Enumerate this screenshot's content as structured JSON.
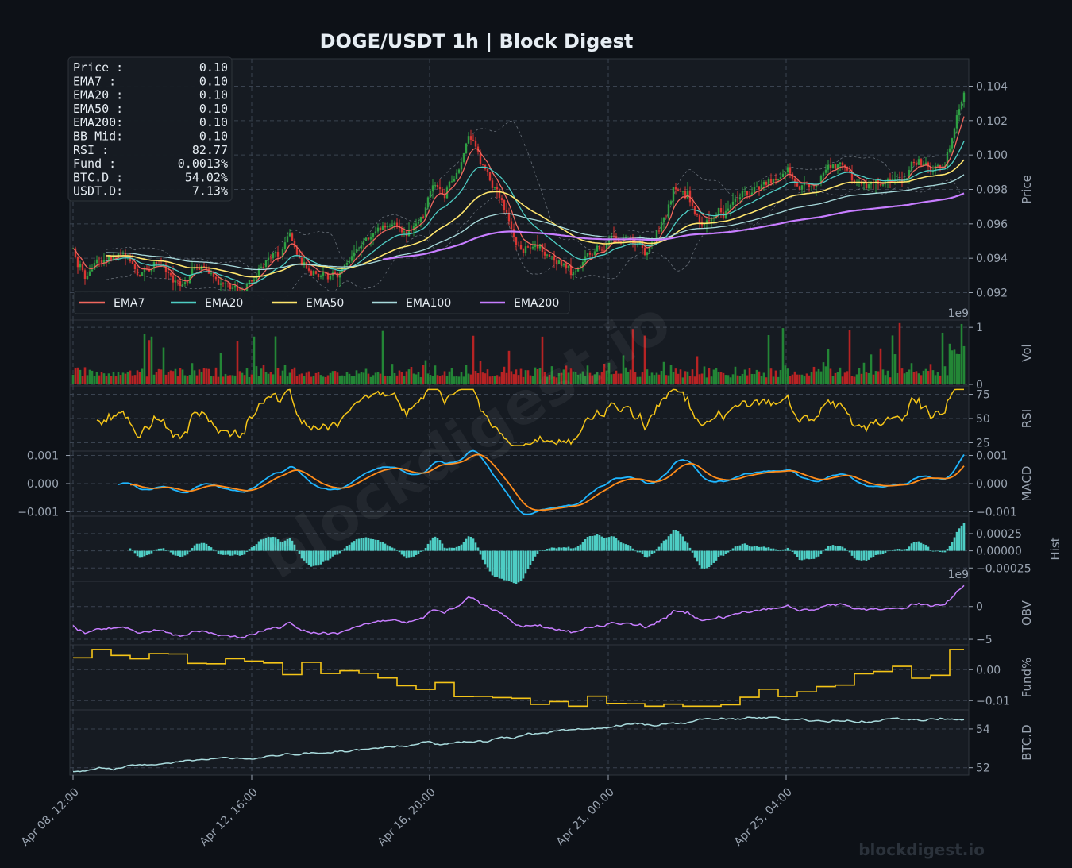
{
  "chart_data": {
    "title": "DOGE/USDT  1h  |  Block Digest",
    "type": "line",
    "watermark_diagonal": "blockdigest.io",
    "watermark_corner": "blockdigest.io",
    "x_ticks": [
      "Apr 08, 12:00",
      "Apr 12, 16:00",
      "Apr 16, 20:00",
      "Apr 21, 00:00",
      "Apr 25, 04:00"
    ],
    "info_box": [
      {
        "label": "Price :",
        "value": "0.10"
      },
      {
        "label": "EMA7  :",
        "value": "0.10"
      },
      {
        "label": "EMA20 :",
        "value": "0.10"
      },
      {
        "label": "EMA50 :",
        "value": "0.10"
      },
      {
        "label": "EMA200:",
        "value": "0.10"
      },
      {
        "label": "BB Mid:",
        "value": "0.10"
      },
      {
        "label": "RSI   :",
        "value": "82.77"
      },
      {
        "label": "Fund  :",
        "value": "0.0013%"
      },
      {
        "label": "BTC.D :",
        "value": "54.02%"
      },
      {
        "label": "USDT.D:",
        "value": "7.13%"
      }
    ],
    "legend": [
      {
        "name": "EMA7",
        "color": "#f0675e"
      },
      {
        "name": "EMA20",
        "color": "#4ecdc4"
      },
      {
        "name": "EMA50",
        "color": "#ffe66d"
      },
      {
        "name": "EMA100",
        "color": "#a8dadc"
      },
      {
        "name": "EMA200",
        "color": "#c77dff"
      }
    ],
    "panels": [
      {
        "id": "price",
        "ylabel": "Price",
        "ylim": [
          0.0905,
          0.1055
        ],
        "ticks": [
          "0.092",
          "0.094",
          "0.096",
          "0.098",
          "0.100",
          "0.102",
          "0.104"
        ],
        "tick_values": [
          0.092,
          0.094,
          0.096,
          0.098,
          0.1,
          0.102,
          0.104
        ],
        "offset": "1e9"
      },
      {
        "id": "vol",
        "ylabel": "Vol",
        "ylim": [
          0,
          1.1
        ],
        "ticks": [
          "0",
          "1"
        ],
        "tick_values": [
          0,
          1
        ]
      },
      {
        "id": "rsi",
        "ylabel": "RSI",
        "ylim": [
          18,
          82
        ],
        "ticks": [
          "25",
          "50",
          "75"
        ],
        "tick_values": [
          25,
          50,
          75
        ]
      },
      {
        "id": "macd",
        "ylabel": "MACD",
        "ylim": [
          -0.0011,
          0.0011
        ],
        "ticks": [
          "-0.001",
          "0.000",
          "0.001"
        ],
        "tick_values": [
          -0.001,
          0,
          0.001
        ],
        "left_ticks": [
          "0.001",
          "0.000",
          "−0.001"
        ],
        "right_ticks": [
          "−0.001",
          "0.000",
          "0.001"
        ]
      },
      {
        "id": "hist",
        "ylabel": "Hist",
        "ylim": [
          -0.00042,
          0.00048
        ],
        "ticks": [
          "−0.00025",
          "0.00000",
          "0.00025"
        ],
        "tick_values": [
          -0.00025,
          0,
          0.00025
        ],
        "offset": "1e9"
      },
      {
        "id": "obv",
        "ylabel": "OBV",
        "ylim": [
          -5.6,
          3.6
        ],
        "ticks": [
          "−5",
          "0"
        ],
        "tick_values": [
          -5,
          0
        ]
      },
      {
        "id": "fund",
        "ylabel": "Fund%",
        "ylim": [
          -0.0125,
          0.0075
        ],
        "ticks": [
          "−0.01",
          "0.00"
        ],
        "tick_values": [
          -0.01,
          0
        ]
      },
      {
        "id": "btcd",
        "ylabel": "BTC.D",
        "ylim": [
          51.7,
          54.9
        ],
        "ticks": [
          "52",
          "54"
        ],
        "tick_values": [
          52,
          54
        ]
      }
    ],
    "price_anchors": [
      [
        0,
        0.0944
      ],
      [
        5,
        0.0928
      ],
      [
        14,
        0.0938
      ],
      [
        22,
        0.0942
      ],
      [
        28,
        0.0934
      ],
      [
        38,
        0.0935
      ],
      [
        44,
        0.0928
      ],
      [
        52,
        0.0935
      ],
      [
        58,
        0.0928
      ],
      [
        64,
        0.0923
      ],
      [
        70,
        0.0918
      ],
      [
        76,
        0.0928
      ],
      [
        84,
        0.094
      ],
      [
        92,
        0.0948
      ],
      [
        98,
        0.0934
      ],
      [
        106,
        0.093
      ],
      [
        114,
        0.0935
      ],
      [
        122,
        0.095
      ],
      [
        128,
        0.0957
      ],
      [
        134,
        0.096
      ],
      [
        140,
        0.0948
      ],
      [
        146,
        0.0962
      ],
      [
        152,
        0.098
      ],
      [
        156,
        0.0975
      ],
      [
        162,
        0.0995
      ],
      [
        166,
        0.1012
      ],
      [
        170,
        0.0998
      ],
      [
        176,
        0.0985
      ],
      [
        182,
        0.0965
      ],
      [
        186,
        0.095
      ],
      [
        192,
        0.0945
      ],
      [
        198,
        0.0942
      ],
      [
        204,
        0.0938
      ],
      [
        210,
        0.0932
      ],
      [
        216,
        0.094
      ],
      [
        222,
        0.0948
      ],
      [
        228,
        0.0952
      ],
      [
        234,
        0.095
      ],
      [
        240,
        0.0945
      ],
      [
        246,
        0.0955
      ],
      [
        252,
        0.0978
      ],
      [
        258,
        0.0975
      ],
      [
        264,
        0.096
      ],
      [
        270,
        0.0965
      ],
      [
        276,
        0.097
      ],
      [
        282,
        0.0978
      ],
      [
        288,
        0.0985
      ],
      [
        294,
        0.0982
      ],
      [
        300,
        0.0988
      ],
      [
        306,
        0.0984
      ],
      [
        312,
        0.0986
      ],
      [
        318,
        0.0992
      ],
      [
        324,
        0.099
      ],
      [
        330,
        0.098
      ],
      [
        336,
        0.0986
      ],
      [
        342,
        0.099
      ],
      [
        348,
        0.0988
      ],
      [
        354,
        0.0995
      ],
      [
        360,
        0.0992
      ],
      [
        366,
        0.1
      ],
      [
        371,
        0.1025
      ],
      [
        374,
        0.104
      ]
    ],
    "series_count": 375
  }
}
